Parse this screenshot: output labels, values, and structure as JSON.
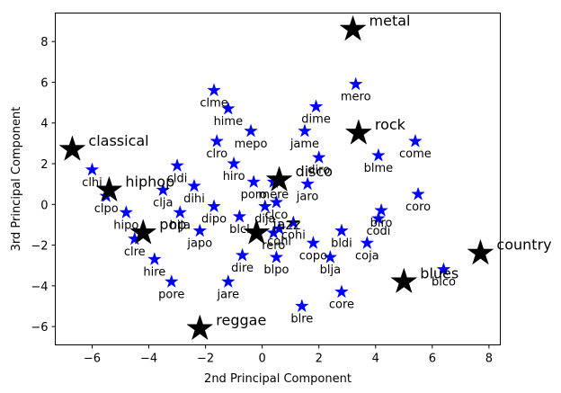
{
  "chart_data": {
    "type": "scatter",
    "xlabel": "2nd Principal Component",
    "ylabel": "3rd Principal Component",
    "xlim": [
      -7.3,
      8.4
    ],
    "ylim": [
      -6.9,
      9.4
    ],
    "xticks": [
      -6,
      -4,
      -2,
      0,
      2,
      4,
      6,
      8
    ],
    "yticks": [
      -6,
      -4,
      -2,
      0,
      2,
      4,
      6,
      8
    ],
    "grid": false,
    "series": [
      {
        "marker": "star",
        "color": "#0000ff",
        "points": [
          {
            "x": -6.0,
            "y": 1.7,
            "label": "clhi"
          },
          {
            "x": -5.5,
            "y": 0.4,
            "label": "clpo"
          },
          {
            "x": -4.8,
            "y": -0.4,
            "label": "hipo"
          },
          {
            "x": -4.5,
            "y": -1.7,
            "label": "clre"
          },
          {
            "x": -3.8,
            "y": -2.7,
            "label": "hire"
          },
          {
            "x": -3.2,
            "y": -3.8,
            "label": "pore"
          },
          {
            "x": -3.5,
            "y": 0.7,
            "label": "clja"
          },
          {
            "x": -3.0,
            "y": 1.9,
            "label": "cldi"
          },
          {
            "x": -2.4,
            "y": 0.9,
            "label": "dihi"
          },
          {
            "x": -2.9,
            "y": -0.4,
            "label": "hija"
          },
          {
            "x": -2.2,
            "y": -1.3,
            "label": "japo"
          },
          {
            "x": -1.7,
            "y": -0.1,
            "label": "dipo"
          },
          {
            "x": -1.7,
            "y": 5.6,
            "label": "clme"
          },
          {
            "x": -1.2,
            "y": 4.7,
            "label": "hime"
          },
          {
            "x": -1.6,
            "y": 3.1,
            "label": "clro"
          },
          {
            "x": -1.0,
            "y": 2.0,
            "label": "hiro"
          },
          {
            "x": -0.4,
            "y": 3.6,
            "label": "mepo"
          },
          {
            "x": -0.8,
            "y": -0.6,
            "label": "blcl"
          },
          {
            "x": -0.7,
            "y": -2.5,
            "label": "dire"
          },
          {
            "x": -1.2,
            "y": -3.8,
            "label": "jare"
          },
          {
            "x": -0.3,
            "y": 1.1,
            "label": "poro"
          },
          {
            "x": 0.1,
            "y": -0.1,
            "label": "dija"
          },
          {
            "x": 0.4,
            "y": 1.1,
            "label": "mere"
          },
          {
            "x": 0.5,
            "y": 0.1,
            "label": "clco"
          },
          {
            "x": 0.4,
            "y": -1.4,
            "label": "rero"
          },
          {
            "x": 0.5,
            "y": -2.6,
            "label": "blpo"
          },
          {
            "x": 0.6,
            "y": -1.2,
            "label": "cohi"
          },
          {
            "x": 1.1,
            "y": -0.9,
            "label": "cohi"
          },
          {
            "x": 1.5,
            "y": 3.6,
            "label": "jame"
          },
          {
            "x": 1.9,
            "y": 4.8,
            "label": "dime"
          },
          {
            "x": 2.0,
            "y": 2.3,
            "label": "diro"
          },
          {
            "x": 1.6,
            "y": 1.0,
            "label": "jaro"
          },
          {
            "x": 1.8,
            "y": -1.9,
            "label": "copo"
          },
          {
            "x": 2.4,
            "y": -2.6,
            "label": "blja"
          },
          {
            "x": 2.8,
            "y": -1.3,
            "label": "bldi"
          },
          {
            "x": 2.8,
            "y": -4.3,
            "label": "core"
          },
          {
            "x": 1.4,
            "y": -5.0,
            "label": "blre"
          },
          {
            "x": 3.3,
            "y": 5.9,
            "label": "mero"
          },
          {
            "x": 4.1,
            "y": 2.4,
            "label": "blme"
          },
          {
            "x": 4.2,
            "y": -0.3,
            "label": "blro"
          },
          {
            "x": 4.1,
            "y": -0.7,
            "label": "codi"
          },
          {
            "x": 3.7,
            "y": -1.9,
            "label": "coja"
          },
          {
            "x": 5.4,
            "y": 3.1,
            "label": "come"
          },
          {
            "x": 5.5,
            "y": 0.5,
            "label": "coro"
          },
          {
            "x": 6.4,
            "y": -3.2,
            "label": "blco"
          }
        ]
      },
      {
        "marker": "star",
        "color": "#000000",
        "points": [
          {
            "x": -6.7,
            "y": 2.7,
            "label": "classical"
          },
          {
            "x": -5.4,
            "y": 0.7,
            "label": "hiphop"
          },
          {
            "x": -4.2,
            "y": -1.4,
            "label": "pop"
          },
          {
            "x": -2.2,
            "y": -6.1,
            "label": "reggae"
          },
          {
            "x": -0.2,
            "y": -1.4,
            "label": "jazz"
          },
          {
            "x": 0.6,
            "y": 1.2,
            "label": "disco"
          },
          {
            "x": 3.2,
            "y": 8.6,
            "label": "metal"
          },
          {
            "x": 3.4,
            "y": 3.5,
            "label": "rock"
          },
          {
            "x": 5.0,
            "y": -3.8,
            "label": "blues"
          },
          {
            "x": 7.7,
            "y": -2.4,
            "label": "country"
          }
        ]
      }
    ]
  }
}
